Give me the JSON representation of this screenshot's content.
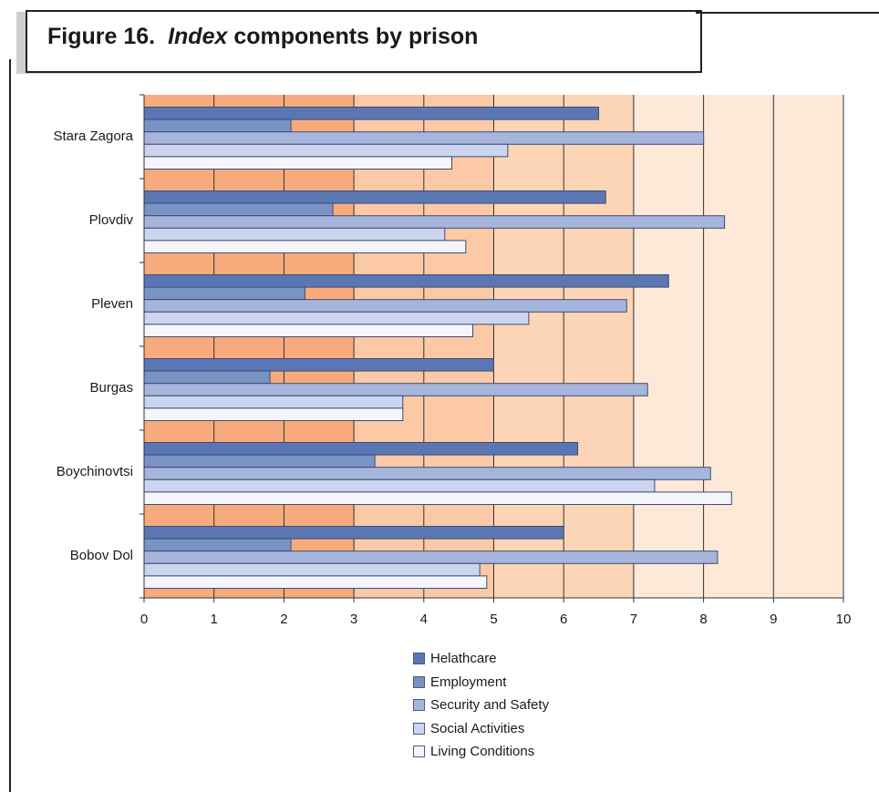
{
  "figure": {
    "label": "Figure 16.",
    "title_italic": "Index",
    "title_rest": "components by prison"
  },
  "chart_data": {
    "type": "bar",
    "orientation": "horizontal",
    "categories": [
      "Stara Zagora",
      "Plovdiv",
      "Pleven",
      "Burgas",
      "Boychinovtsi",
      "Bobov Dol"
    ],
    "series": [
      {
        "name": "Helathcare",
        "color": "#5a77b4",
        "values": [
          6.5,
          6.6,
          7.5,
          5.0,
          6.2,
          6.0
        ]
      },
      {
        "name": "Employment",
        "color": "#7a93c6",
        "values": [
          2.1,
          2.7,
          2.3,
          1.8,
          3.3,
          2.1
        ]
      },
      {
        "name": "Security and Safety",
        "color": "#a6b5dc",
        "values": [
          8.0,
          8.3,
          6.9,
          7.2,
          8.1,
          8.2
        ]
      },
      {
        "name": "Social Activities",
        "color": "#ccd5ee",
        "values": [
          5.2,
          4.3,
          5.5,
          3.7,
          7.3,
          4.8
        ]
      },
      {
        "name": "Living Conditions",
        "color": "#f4f6fc",
        "values": [
          4.4,
          4.6,
          4.7,
          3.7,
          8.4,
          4.9
        ]
      }
    ],
    "x_ticks": [
      "0",
      "1",
      "2",
      "3",
      "4",
      "5",
      "6",
      "7",
      "8",
      "9",
      "10"
    ],
    "xlim": [
      0,
      10
    ],
    "xlabel": "",
    "ylabel": "",
    "grid": true,
    "background_bands": [
      {
        "from": 0,
        "to": 3,
        "color": "#f7ab7d"
      },
      {
        "from": 3,
        "to": 5,
        "color": "#fbc9a6"
      },
      {
        "from": 5,
        "to": 7,
        "color": "#fcd5b6"
      },
      {
        "from": 7,
        "to": 10,
        "color": "#fee8d8"
      }
    ],
    "legend_position": "bottom"
  }
}
